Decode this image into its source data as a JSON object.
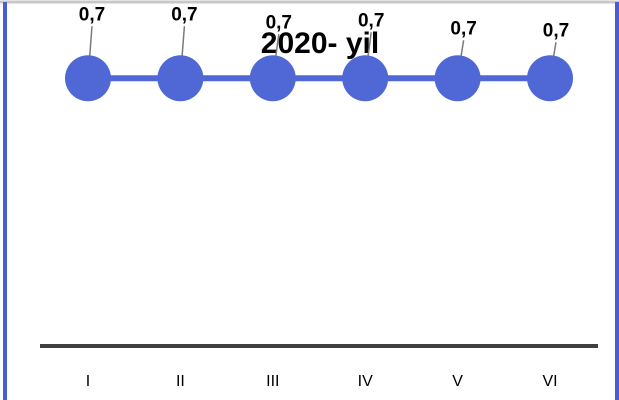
{
  "colors": {
    "frame": "#4a5fcf",
    "frame_top": "#c8c8c8",
    "series": "#4f68d6",
    "axis": "#404040",
    "leader": "#7a7a7a"
  },
  "chart_data": {
    "type": "line",
    "title": "2020- yil",
    "categories": [
      "I",
      "II",
      "III",
      "IV",
      "V",
      "VI"
    ],
    "series": [
      {
        "values": [
          0.7,
          0.7,
          0.7,
          0.7,
          0.7,
          0.7
        ],
        "labels": [
          "0,7",
          "0,7",
          "0,7",
          "0,7",
          "0,7",
          "0,7"
        ]
      }
    ],
    "xlabel": "",
    "ylabel": "",
    "ylim": [
      0,
      0.8
    ],
    "grid": false,
    "legend": "none",
    "marker": "circle"
  }
}
